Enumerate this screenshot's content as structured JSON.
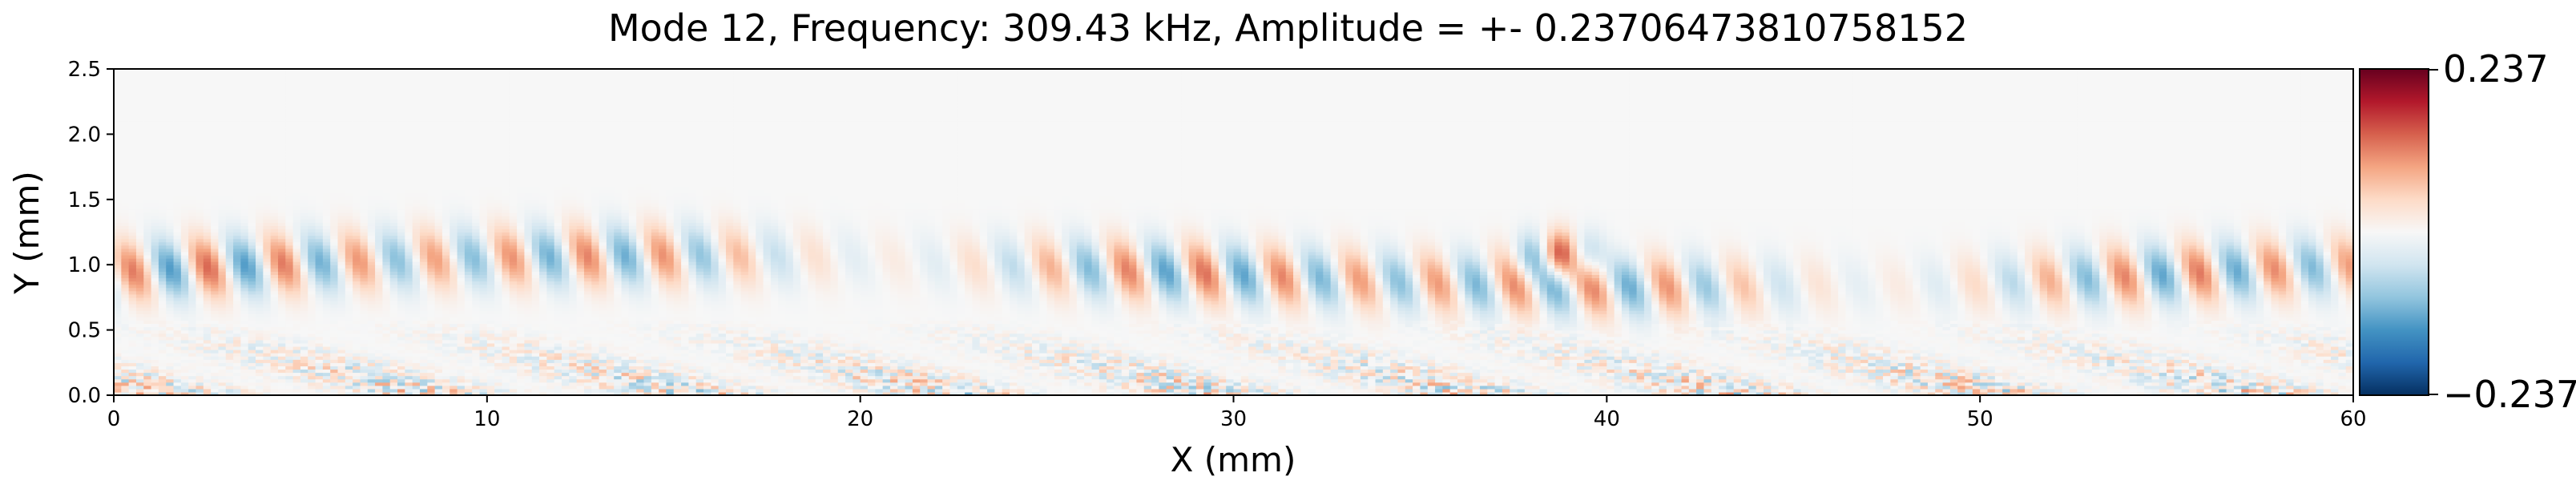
{
  "chart_data": {
    "type": "heatmap",
    "title": "Mode 12, Frequency: 309.43 kHz, Amplitude = +- 0.23706473810758152",
    "xlabel": "X (mm)",
    "ylabel": "Y (mm)",
    "xlim": [
      0,
      60
    ],
    "ylim": [
      0,
      2.5
    ],
    "x_ticks": [
      "0",
      "10",
      "20",
      "30",
      "40",
      "50",
      "60"
    ],
    "y_ticks": [
      "0.0",
      "0.5",
      "1.0",
      "1.5",
      "2.0",
      "2.5"
    ],
    "colormap": "RdBu_r",
    "colors": [
      "#053061",
      "#2166ac",
      "#4393c3",
      "#92c5de",
      "#d1e5f0",
      "#f7f7f7",
      "#fddbc7",
      "#f4a582",
      "#d6604d",
      "#b2182b",
      "#67001f"
    ],
    "vmin": -0.237,
    "vmax": 0.237,
    "colorbar_labels": [
      "0.237",
      "−0.237"
    ],
    "wave_band": {
      "y_center": 0.95,
      "y_halfwidth": 0.35,
      "peak_x": 38.7,
      "peak_value": 0.237
    },
    "noise_band": {
      "y_max": 0.6,
      "amplitude": 0.09
    }
  }
}
